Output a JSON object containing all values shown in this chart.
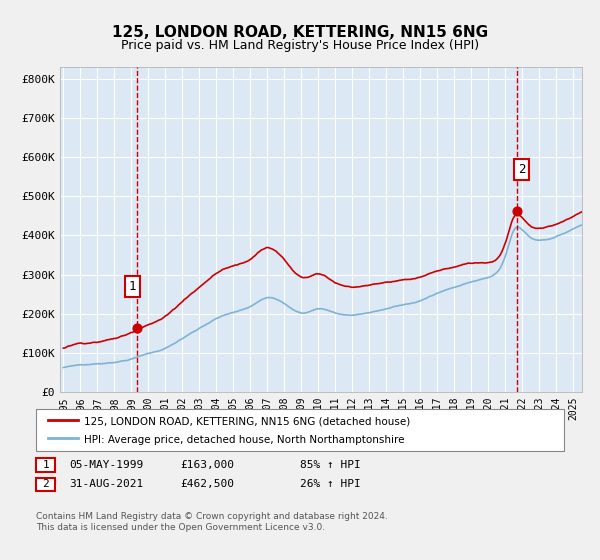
{
  "title": "125, LONDON ROAD, KETTERING, NN15 6NG",
  "subtitle": "Price paid vs. HM Land Registry's House Price Index (HPI)",
  "background_color": "#dce9f5",
  "plot_bg_color": "#dce9f5",
  "ylim": [
    0,
    830000
  ],
  "yticks": [
    0,
    100000,
    200000,
    300000,
    400000,
    500000,
    600000,
    700000,
    800000
  ],
  "ytick_labels": [
    "£0",
    "£100K",
    "£200K",
    "£300K",
    "£400K",
    "£500K",
    "£600K",
    "£700K",
    "£800K"
  ],
  "red_line_color": "#cc0000",
  "blue_line_color": "#7fb3d3",
  "marker_color": "#cc0000",
  "dashed_line_color": "#cc0000",
  "legend_label_red": "125, LONDON ROAD, KETTERING, NN15 6NG (detached house)",
  "legend_label_blue": "HPI: Average price, detached house, North Northamptonshire",
  "annotation1_label": "1",
  "annotation1_date": "05-MAY-1999",
  "annotation1_price": "£163,000",
  "annotation1_hpi": "85% ↑ HPI",
  "annotation2_label": "2",
  "annotation2_date": "31-AUG-2021",
  "annotation2_price": "£462,500",
  "annotation2_hpi": "26% ↑ HPI",
  "footer": "Contains HM Land Registry data © Crown copyright and database right 2024.\nThis data is licensed under the Open Government Licence v3.0.",
  "sale1_year": 1999.35,
  "sale1_price": 163000,
  "sale2_year": 2021.66,
  "sale2_price": 462500
}
